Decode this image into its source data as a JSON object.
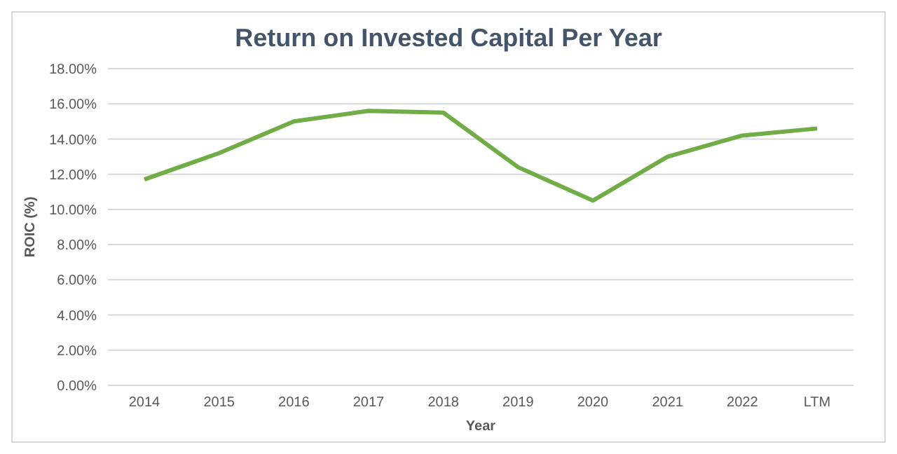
{
  "chart_data": {
    "type": "line",
    "title": "Return on Invested Capital Per Year",
    "xlabel": "Year",
    "ylabel": "ROIC (%)",
    "categories": [
      "2014",
      "2015",
      "2016",
      "2017",
      "2018",
      "2019",
      "2020",
      "2021",
      "2022",
      "LTM"
    ],
    "series": [
      {
        "color": "#70ad47",
        "values": [
          11.7,
          13.2,
          15.0,
          15.6,
          15.5,
          12.4,
          10.5,
          13.0,
          14.2,
          14.6
        ]
      }
    ],
    "ylim": [
      0,
      18
    ],
    "yticks": [
      {
        "value": 0,
        "label": "0.00%"
      },
      {
        "value": 2,
        "label": "2.00%"
      },
      {
        "value": 4,
        "label": "4.00%"
      },
      {
        "value": 6,
        "label": "6.00%"
      },
      {
        "value": 8,
        "label": "8.00%"
      },
      {
        "value": 10,
        "label": "10.00%"
      },
      {
        "value": 12,
        "label": "12.00%"
      },
      {
        "value": 14,
        "label": "14.00%"
      },
      {
        "value": 16,
        "label": "16.00%"
      },
      {
        "value": 18,
        "label": "18.00%"
      }
    ],
    "grid": "y",
    "marker": "none",
    "line_style": "solid",
    "legend": false
  }
}
